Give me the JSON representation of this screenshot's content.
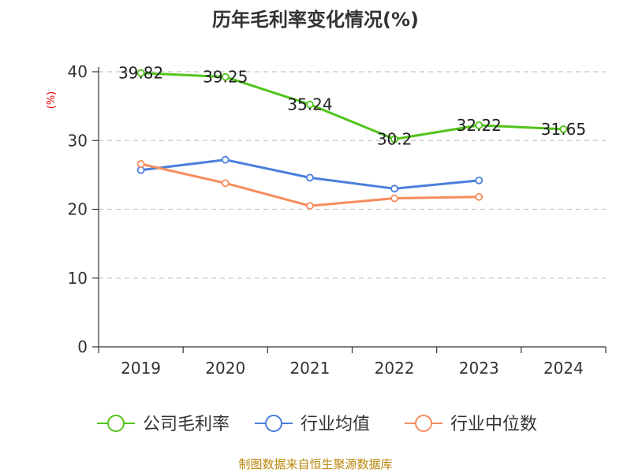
{
  "chart_data": {
    "type": "line",
    "title": "历年毛利率变化情况(%)",
    "ylabel": "(%)",
    "xlabel": "",
    "categories": [
      "2019",
      "2020",
      "2021",
      "2022",
      "2023",
      "2024"
    ],
    "ylim": [
      0,
      40
    ],
    "yticks": [
      "0",
      "10",
      "20",
      "30",
      "40"
    ],
    "grid": true,
    "legend_position": "bottom",
    "series": [
      {
        "name": "公司毛利率",
        "color": "#52c41a",
        "values": [
          39.82,
          39.25,
          35.24,
          30.2,
          32.22,
          31.65
        ],
        "labels": [
          "39.82",
          "39.25",
          "35.24",
          "30.2",
          "32.22",
          "31.65"
        ]
      },
      {
        "name": "行业均值",
        "color": "#4a7fdc",
        "values": [
          25.7,
          27.2,
          24.6,
          23.0,
          24.2,
          null
        ]
      },
      {
        "name": "行业中位数",
        "color": "#f58d5c",
        "values": [
          26.6,
          23.8,
          20.5,
          21.6,
          21.8,
          null
        ]
      }
    ]
  },
  "footer": {
    "source": "制图数据来自恒生聚源数据库"
  }
}
